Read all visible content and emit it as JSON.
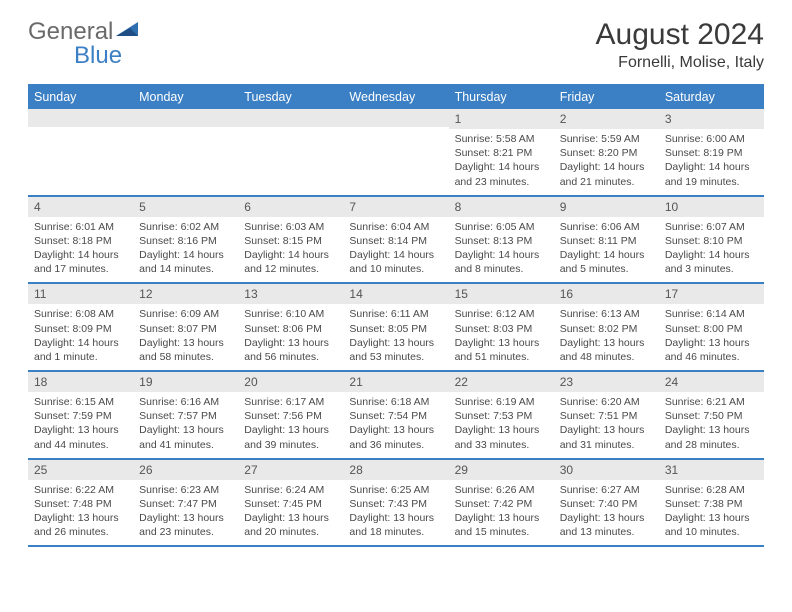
{
  "logo": {
    "general": "General",
    "blue": "Blue"
  },
  "title": "August 2024",
  "location": "Fornelli, Molise, Italy",
  "colors": {
    "accent": "#3b7fc4",
    "headerStripe": "#e9e9e9",
    "text": "#3a3a3a"
  },
  "dayNames": [
    "Sunday",
    "Monday",
    "Tuesday",
    "Wednesday",
    "Thursday",
    "Friday",
    "Saturday"
  ],
  "weeks": [
    [
      {
        "n": "",
        "sr": "",
        "ss": "",
        "dl": ""
      },
      {
        "n": "",
        "sr": "",
        "ss": "",
        "dl": ""
      },
      {
        "n": "",
        "sr": "",
        "ss": "",
        "dl": ""
      },
      {
        "n": "",
        "sr": "",
        "ss": "",
        "dl": ""
      },
      {
        "n": "1",
        "sr": "5:58 AM",
        "ss": "8:21 PM",
        "dl": "14 hours and 23 minutes."
      },
      {
        "n": "2",
        "sr": "5:59 AM",
        "ss": "8:20 PM",
        "dl": "14 hours and 21 minutes."
      },
      {
        "n": "3",
        "sr": "6:00 AM",
        "ss": "8:19 PM",
        "dl": "14 hours and 19 minutes."
      }
    ],
    [
      {
        "n": "4",
        "sr": "6:01 AM",
        "ss": "8:18 PM",
        "dl": "14 hours and 17 minutes."
      },
      {
        "n": "5",
        "sr": "6:02 AM",
        "ss": "8:16 PM",
        "dl": "14 hours and 14 minutes."
      },
      {
        "n": "6",
        "sr": "6:03 AM",
        "ss": "8:15 PM",
        "dl": "14 hours and 12 minutes."
      },
      {
        "n": "7",
        "sr": "6:04 AM",
        "ss": "8:14 PM",
        "dl": "14 hours and 10 minutes."
      },
      {
        "n": "8",
        "sr": "6:05 AM",
        "ss": "8:13 PM",
        "dl": "14 hours and 8 minutes."
      },
      {
        "n": "9",
        "sr": "6:06 AM",
        "ss": "8:11 PM",
        "dl": "14 hours and 5 minutes."
      },
      {
        "n": "10",
        "sr": "6:07 AM",
        "ss": "8:10 PM",
        "dl": "14 hours and 3 minutes."
      }
    ],
    [
      {
        "n": "11",
        "sr": "6:08 AM",
        "ss": "8:09 PM",
        "dl": "14 hours and 1 minute."
      },
      {
        "n": "12",
        "sr": "6:09 AM",
        "ss": "8:07 PM",
        "dl": "13 hours and 58 minutes."
      },
      {
        "n": "13",
        "sr": "6:10 AM",
        "ss": "8:06 PM",
        "dl": "13 hours and 56 minutes."
      },
      {
        "n": "14",
        "sr": "6:11 AM",
        "ss": "8:05 PM",
        "dl": "13 hours and 53 minutes."
      },
      {
        "n": "15",
        "sr": "6:12 AM",
        "ss": "8:03 PM",
        "dl": "13 hours and 51 minutes."
      },
      {
        "n": "16",
        "sr": "6:13 AM",
        "ss": "8:02 PM",
        "dl": "13 hours and 48 minutes."
      },
      {
        "n": "17",
        "sr": "6:14 AM",
        "ss": "8:00 PM",
        "dl": "13 hours and 46 minutes."
      }
    ],
    [
      {
        "n": "18",
        "sr": "6:15 AM",
        "ss": "7:59 PM",
        "dl": "13 hours and 44 minutes."
      },
      {
        "n": "19",
        "sr": "6:16 AM",
        "ss": "7:57 PM",
        "dl": "13 hours and 41 minutes."
      },
      {
        "n": "20",
        "sr": "6:17 AM",
        "ss": "7:56 PM",
        "dl": "13 hours and 39 minutes."
      },
      {
        "n": "21",
        "sr": "6:18 AM",
        "ss": "7:54 PM",
        "dl": "13 hours and 36 minutes."
      },
      {
        "n": "22",
        "sr": "6:19 AM",
        "ss": "7:53 PM",
        "dl": "13 hours and 33 minutes."
      },
      {
        "n": "23",
        "sr": "6:20 AM",
        "ss": "7:51 PM",
        "dl": "13 hours and 31 minutes."
      },
      {
        "n": "24",
        "sr": "6:21 AM",
        "ss": "7:50 PM",
        "dl": "13 hours and 28 minutes."
      }
    ],
    [
      {
        "n": "25",
        "sr": "6:22 AM",
        "ss": "7:48 PM",
        "dl": "13 hours and 26 minutes."
      },
      {
        "n": "26",
        "sr": "6:23 AM",
        "ss": "7:47 PM",
        "dl": "13 hours and 23 minutes."
      },
      {
        "n": "27",
        "sr": "6:24 AM",
        "ss": "7:45 PM",
        "dl": "13 hours and 20 minutes."
      },
      {
        "n": "28",
        "sr": "6:25 AM",
        "ss": "7:43 PM",
        "dl": "13 hours and 18 minutes."
      },
      {
        "n": "29",
        "sr": "6:26 AM",
        "ss": "7:42 PM",
        "dl": "13 hours and 15 minutes."
      },
      {
        "n": "30",
        "sr": "6:27 AM",
        "ss": "7:40 PM",
        "dl": "13 hours and 13 minutes."
      },
      {
        "n": "31",
        "sr": "6:28 AM",
        "ss": "7:38 PM",
        "dl": "13 hours and 10 minutes."
      }
    ]
  ],
  "labels": {
    "sunrise": "Sunrise:",
    "sunset": "Sunset:",
    "daylight": "Daylight:"
  }
}
